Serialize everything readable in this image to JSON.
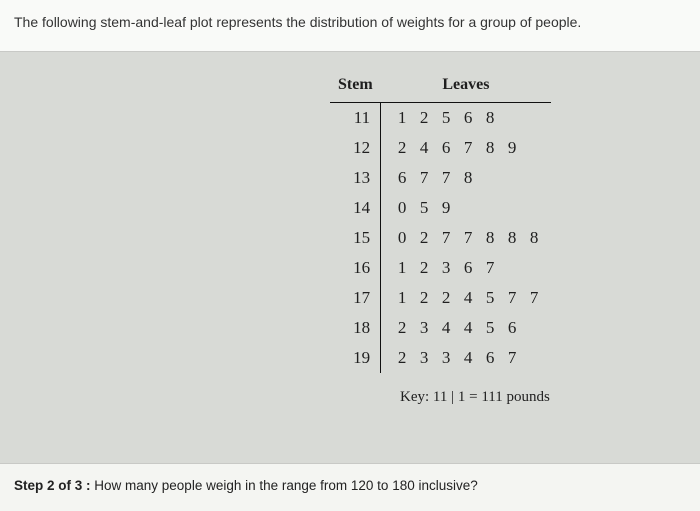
{
  "prompt_text": "The following stem-and-leaf plot represents the distribution of weights for a group of people.",
  "plot": {
    "headers": {
      "stem": "Stem",
      "leaves": "Leaves"
    },
    "rows": [
      {
        "stem": "11",
        "leaves": [
          "1",
          "2",
          "5",
          "6",
          "8"
        ]
      },
      {
        "stem": "12",
        "leaves": [
          "2",
          "4",
          "6",
          "7",
          "8",
          "9"
        ]
      },
      {
        "stem": "13",
        "leaves": [
          "6",
          "7",
          "7",
          "8"
        ]
      },
      {
        "stem": "14",
        "leaves": [
          "0",
          "5",
          "9"
        ]
      },
      {
        "stem": "15",
        "leaves": [
          "0",
          "2",
          "7",
          "7",
          "8",
          "8",
          "8"
        ]
      },
      {
        "stem": "16",
        "leaves": [
          "1",
          "2",
          "3",
          "6",
          "7"
        ]
      },
      {
        "stem": "17",
        "leaves": [
          "1",
          "2",
          "2",
          "4",
          "5",
          "7",
          "7"
        ]
      },
      {
        "stem": "18",
        "leaves": [
          "2",
          "3",
          "4",
          "4",
          "5",
          "6"
        ]
      },
      {
        "stem": "19",
        "leaves": [
          "2",
          "3",
          "3",
          "4",
          "6",
          "7"
        ]
      }
    ],
    "key": "Key: 11 | 1 = 111 pounds",
    "leaf_cols": 7,
    "colors": {
      "page_bg": "#d8dad6",
      "band_bg": "#f9faf8",
      "bottom_bg": "#f4f5f2",
      "rule": "#111111",
      "text": "#222222"
    },
    "fonts": {
      "body_family": "Arial",
      "table_family": "Times New Roman",
      "header_size_pt": 12,
      "cell_size_pt": 13
    }
  },
  "step": {
    "label": "Step 2 of 3 :",
    "question": " How many people weigh in the range from 120 to 180 inclusive?"
  }
}
